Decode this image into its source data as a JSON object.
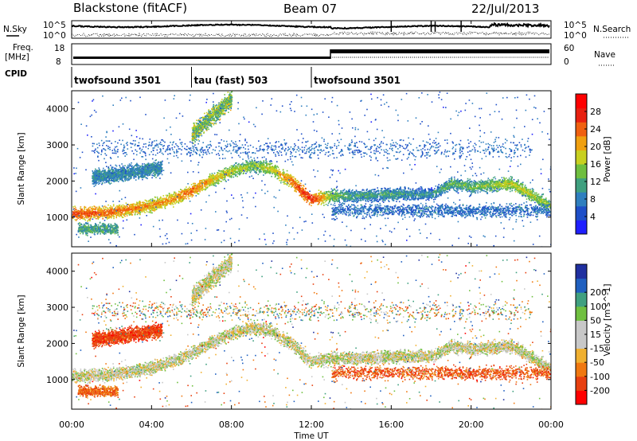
{
  "header": {
    "title": "Blackstone (fitACF)",
    "beam": "Beam 07",
    "date": "22/Jul/2013"
  },
  "side_labels": {
    "nsky": "N.Sky",
    "nsearch": "N.Search",
    "freq_line1": "Freq.",
    "freq_line2": "[MHz]",
    "nave": "Nave",
    "cpid": "CPID"
  },
  "noise_panel": {
    "left_ticks": [
      "10^5",
      "10^0"
    ],
    "right_ticks": [
      "10^5",
      "10^0"
    ]
  },
  "freq_panel": {
    "left_ticks": [
      "18",
      "8"
    ],
    "right_ticks": [
      "60",
      "0"
    ]
  },
  "cpid_segments": [
    {
      "label": "twofsound 3501",
      "start_hour": 0
    },
    {
      "label": "tau (fast) 503",
      "start_hour": 6
    },
    {
      "label": "twofsound 3501",
      "start_hour": 12
    }
  ],
  "colors": {
    "power_scale": [
      "#1f1fff",
      "#1e4fc8",
      "#2f7fbf",
      "#3fa07f",
      "#6fbf3f",
      "#c8d020",
      "#f0a010",
      "#f06010",
      "#e82010",
      "#ff0000"
    ],
    "velocity_scale": [
      "#ff0000",
      "#e84010",
      "#f07810",
      "#f0b030",
      "#c8c8c8",
      "#c8c8c8",
      "#70c040",
      "#40a080",
      "#2060c0",
      "#2030a0"
    ]
  },
  "chart_data": [
    {
      "type": "heatmap",
      "name": "power",
      "ylabel": "Slant Range [km]",
      "colorbar_label": "Power [dB]",
      "colorbar_ticks": [
        "4",
        "8",
        "12",
        "16",
        "20",
        "24",
        "28"
      ],
      "colorbar_range": [
        0,
        32
      ],
      "ylim": [
        180,
        4500
      ],
      "y_ticks": [
        "1000",
        "2000",
        "3000",
        "4000"
      ],
      "xlim": [
        0,
        24
      ],
      "x_ticks": [
        "00:00",
        "04:00",
        "08:00",
        "12:00",
        "16:00",
        "20:00",
        "00:00"
      ],
      "xlabel": "Time UT",
      "main_band": {
        "hours": [
          0,
          2,
          4,
          5,
          6,
          7,
          8,
          9,
          10,
          11,
          12,
          13,
          14,
          16,
          18,
          19,
          20,
          22,
          24
        ],
        "range_km": [
          1100,
          1150,
          1350,
          1500,
          1750,
          2050,
          2300,
          2450,
          2350,
          2000,
          1500,
          1600,
          1600,
          1650,
          1650,
          1950,
          1850,
          1950,
          1300
        ],
        "power_db": [
          26,
          24,
          22,
          22,
          24,
          20,
          18,
          16,
          18,
          24,
          28,
          16,
          12,
          12,
          10,
          14,
          14,
          18,
          16
        ]
      }
    },
    {
      "type": "heatmap",
      "name": "velocity",
      "ylabel": "Slant Range [km]",
      "colorbar_label": "Velocity [m s^-1]",
      "colorbar_ticks": [
        "-200",
        "-100",
        "-50",
        "-15",
        "15",
        "50",
        "100",
        "200"
      ],
      "ylim": [
        180,
        4500
      ],
      "y_ticks": [
        "1000",
        "2000",
        "3000",
        "4000"
      ],
      "xlim": [
        0,
        24
      ],
      "x_ticks": [
        "00:00",
        "04:00",
        "08:00",
        "12:00",
        "16:00",
        "20:00",
        "00:00"
      ],
      "xlabel": "Time UT"
    }
  ]
}
